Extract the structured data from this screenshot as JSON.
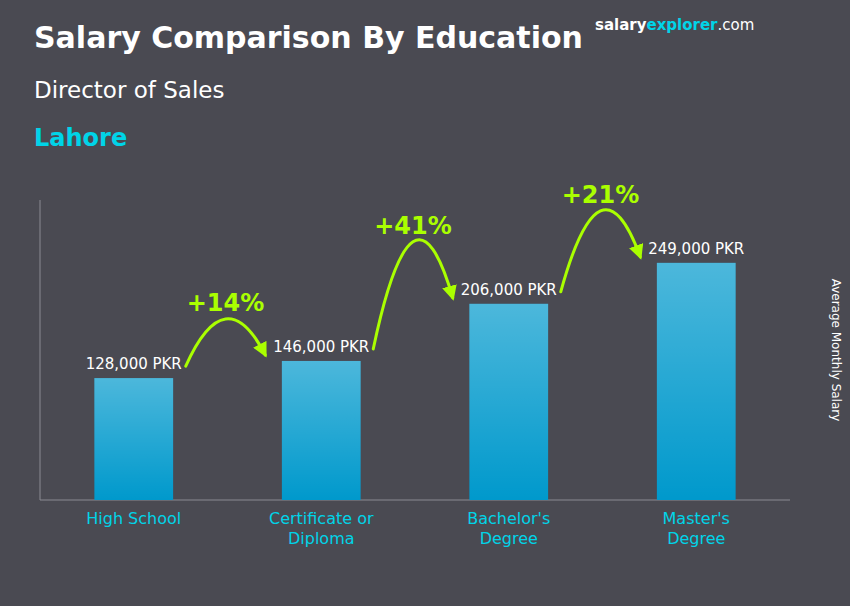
{
  "chart_data": {
    "type": "bar",
    "title": "Salary Comparison By Education",
    "subtitle": "Director of Sales",
    "annotations": [
      "Lahore"
    ],
    "watermark": [
      "salary",
      "explorer",
      ".com"
    ],
    "y_label": "Average Monthly Salary",
    "categories": [
      "High School",
      "Certificate or\nDiploma",
      "Bachelor's\nDegree",
      "Master's\nDegree"
    ],
    "values": [
      128000,
      146000,
      206000,
      249000
    ],
    "value_labels": [
      "128,000 PKR",
      "146,000 PKR",
      "206,000 PKR",
      "249,000 PKR"
    ],
    "data_labels": true,
    "change_labels": [
      "+14%",
      "+41%",
      "+21%"
    ],
    "color": "#0099cc",
    "ylim": [
      0,
      315000
    ],
    "tick_labels": "x",
    "grid": false
  }
}
